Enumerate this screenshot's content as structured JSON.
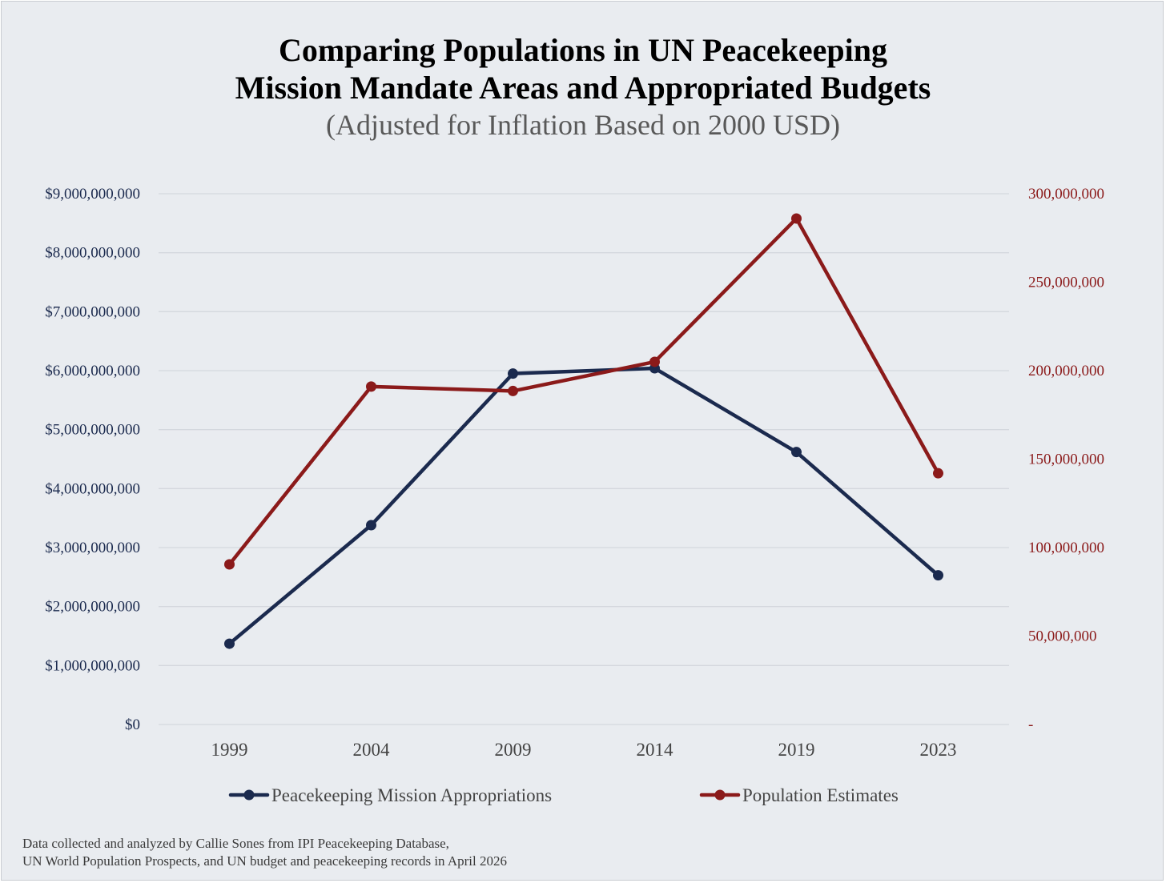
{
  "chart_data": {
    "type": "line",
    "title_line1": "Comparing Populations in UN Peacekeeping",
    "title_line2": "Mission Mandate Areas and Appropriated Budgets",
    "subtitle": "(Adjusted for Inflation Based on 2000 USD)",
    "categories": [
      "1999",
      "2004",
      "2009",
      "2014",
      "2019",
      "2023"
    ],
    "series": [
      {
        "name": "Peacekeeping Mission Appropriations",
        "axis": "left",
        "color": "#1B2A4E",
        "values": [
          1370000000,
          3380000000,
          5950000000,
          6040000000,
          4620000000,
          2530000000
        ]
      },
      {
        "name": "Population Estimates",
        "axis": "right",
        "color": "#8B1A1A",
        "values": [
          90500000,
          191000000,
          188500000,
          205000000,
          286000000,
          142000000
        ]
      }
    ],
    "y_left": {
      "range": [
        0,
        9000000000
      ],
      "ticks": [
        0,
        1000000000,
        2000000000,
        3000000000,
        4000000000,
        5000000000,
        6000000000,
        7000000000,
        8000000000,
        9000000000
      ],
      "tick_labels": [
        "$0",
        "$1,000,000,000",
        "$2,000,000,000",
        "$3,000,000,000",
        "$4,000,000,000",
        "$5,000,000,000",
        "$6,000,000,000",
        "$7,000,000,000",
        "$8,000,000,000",
        "$9,000,000,000"
      ]
    },
    "y_right": {
      "range": [
        0,
        300000000
      ],
      "ticks": [
        0,
        50000000,
        100000000,
        150000000,
        200000000,
        250000000,
        300000000
      ],
      "tick_labels": [
        "-",
        "50,000,000",
        "100,000,000",
        "150,000,000",
        "200,000,000",
        "250,000,000",
        "300,000,000"
      ]
    },
    "grid": true,
    "legend_position": "bottom"
  },
  "footnote": {
    "line1": "Data collected and analyzed by Callie Sones from IPI Peacekeeping Database,",
    "line2": "UN World Population Prospects, and UN budget and peacekeeping records in April 2026"
  },
  "colors": {
    "background": "#E9ECF0",
    "grid": "#D4D8DE",
    "left_axis_text": "#1B2A4E",
    "right_axis_text": "#8B1A1A",
    "category_text": "#444444"
  }
}
